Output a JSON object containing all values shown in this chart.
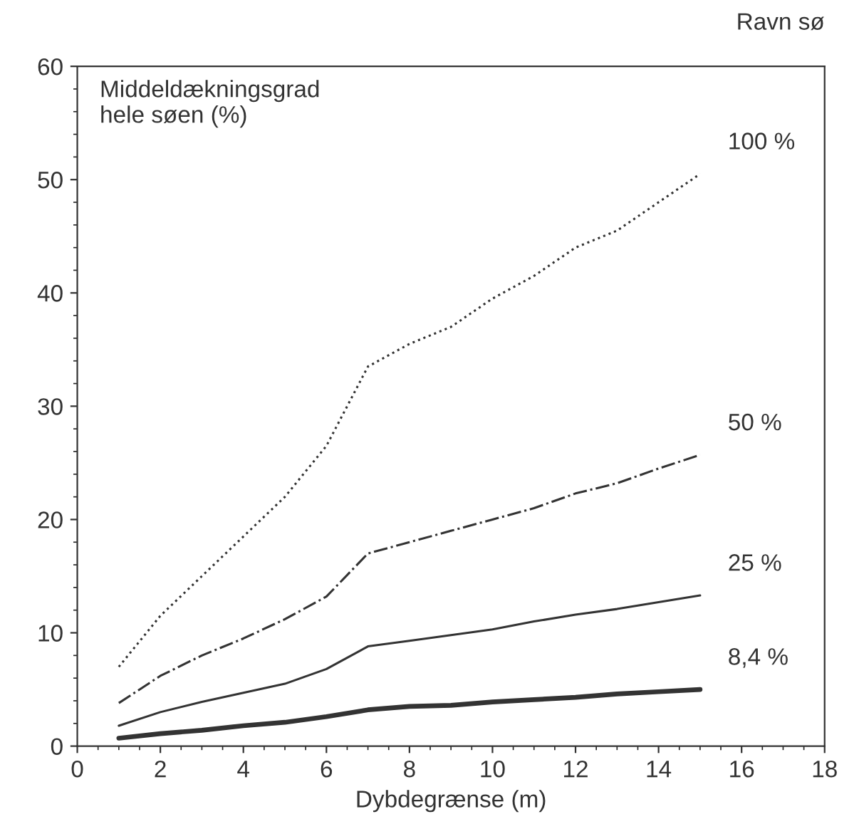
{
  "chart_data": {
    "type": "line",
    "title": "Ravn sø",
    "ylabel": "Middeldækningsgrad\nhele søen (%)",
    "xlabel": "Dybdegrænse (m)",
    "x": [
      1,
      2,
      3,
      4,
      5,
      6,
      7,
      8,
      9,
      10,
      11,
      12,
      13,
      14,
      15
    ],
    "series": [
      {
        "name": "100 %",
        "color": "#333333",
        "line_style": "dotted",
        "values": [
          7,
          11.5,
          15,
          18.5,
          22,
          26.5,
          33.5,
          35.5,
          37,
          39.5,
          41.5,
          44,
          45.5,
          48,
          50.5
        ]
      },
      {
        "name": "50 %",
        "color": "#333333",
        "line_style": "dashdot",
        "values": [
          3.8,
          6.2,
          8,
          9.5,
          11.2,
          13.2,
          17,
          18,
          19,
          20,
          21,
          22.3,
          23.2,
          24.5,
          25.7
        ]
      },
      {
        "name": "25 %",
        "color": "#333333",
        "line_style": "solid",
        "values": [
          1.8,
          3,
          3.9,
          4.7,
          5.5,
          6.8,
          8.8,
          9.3,
          9.8,
          10.3,
          11,
          11.6,
          12.1,
          12.7,
          13.3
        ]
      },
      {
        "name": "8,4 %",
        "color": "#333333",
        "line_style": "solid",
        "values": [
          0.7,
          1.1,
          1.4,
          1.8,
          2.1,
          2.6,
          3.2,
          3.5,
          3.6,
          3.9,
          4.1,
          4.3,
          4.6,
          4.8,
          5.0
        ]
      }
    ],
    "xlim": [
      0,
      18
    ],
    "xticks": [
      0,
      2,
      4,
      6,
      8,
      10,
      12,
      14,
      16,
      18
    ],
    "ylim": [
      0,
      60
    ],
    "yticks": [
      0,
      10,
      20,
      30,
      40,
      50,
      60
    ],
    "grid": false,
    "legend": false,
    "marker": "none"
  }
}
